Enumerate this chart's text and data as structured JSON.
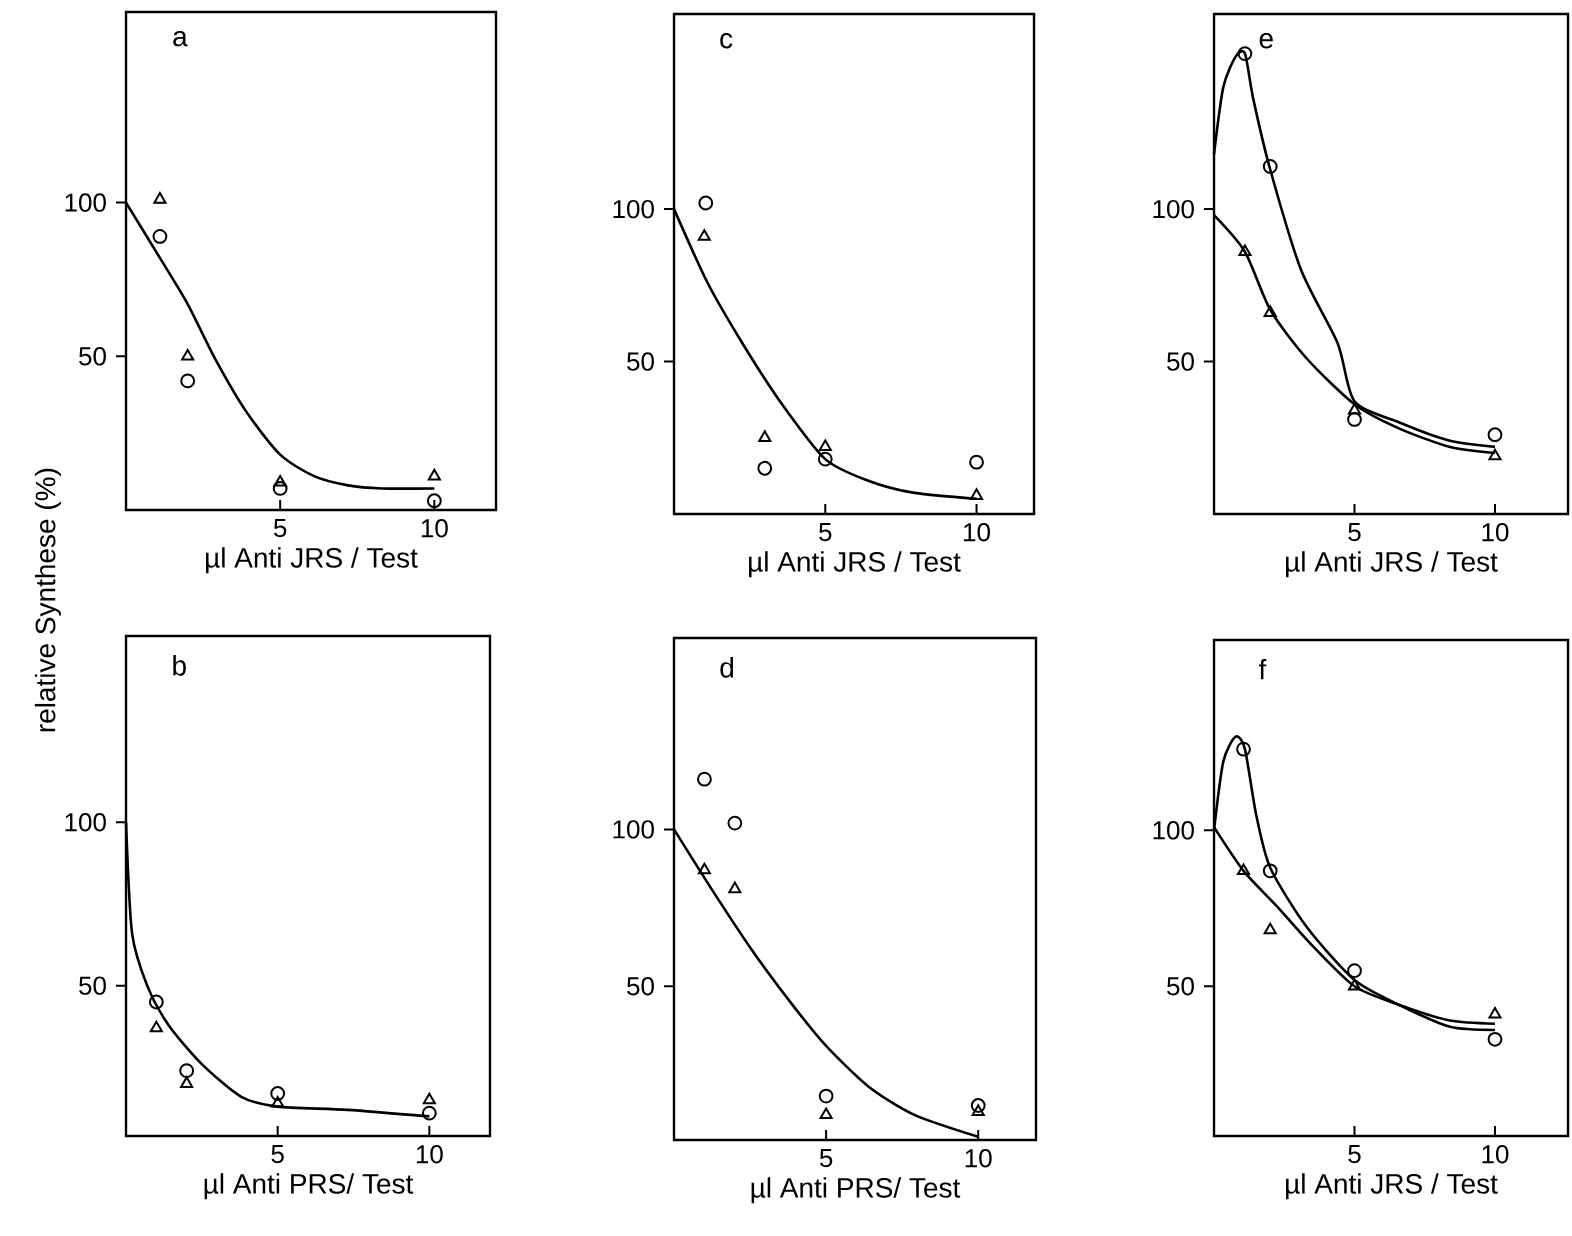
{
  "chart_data": [
    {
      "type": "scatter",
      "title": "a",
      "xlabel": "µl Anti JRS / Test",
      "ylabel": "relative Synthese (%)",
      "xlim": [
        0,
        12
      ],
      "xticks": [
        5,
        10
      ],
      "ylim": [
        0,
        162
      ],
      "yticks": [
        50,
        100
      ],
      "series": [
        {
          "type": "scatter",
          "marker": "circle",
          "color": "#000000",
          "x": [
            1.1,
            2,
            5,
            10
          ],
          "values": [
            89,
            42,
            7,
            3
          ]
        },
        {
          "type": "scatter",
          "marker": "triangle",
          "color": "#000000",
          "x": [
            1.1,
            2,
            5,
            10
          ],
          "values": [
            101,
            50,
            9,
            11
          ]
        },
        {
          "type": "line",
          "marker": "none",
          "color": "#000000",
          "x": [
            0,
            1.1,
            2,
            2.9,
            3.9,
            5,
            6.1,
            7.2,
            8.3,
            10
          ],
          "values": [
            100,
            82,
            67,
            49,
            32,
            18,
            11,
            8,
            7,
            7
          ]
        }
      ]
    },
    {
      "type": "scatter",
      "title": "c",
      "xlabel": "µl Anti JRS / Test",
      "xlim": [
        0,
        11.9
      ],
      "xticks": [
        5,
        10
      ],
      "ylim": [
        0,
        164
      ],
      "yticks": [
        50,
        100
      ],
      "series": [
        {
          "type": "scatter",
          "marker": "circle",
          "color": "#000000",
          "x": [
            1.05,
            3,
            5,
            10
          ],
          "values": [
            102,
            15,
            18,
            17
          ]
        },
        {
          "type": "scatter",
          "marker": "triangle",
          "color": "#000000",
          "x": [
            1,
            3,
            5,
            10
          ],
          "values": [
            91,
            25,
            22,
            6
          ]
        },
        {
          "type": "line",
          "marker": "none",
          "color": "#000000",
          "x": [
            0,
            1.1,
            2.2,
            3.5,
            5,
            6.4,
            7.9,
            10
          ],
          "values": [
            100,
            76,
            57,
            37,
            18,
            11,
            7,
            5
          ]
        }
      ]
    },
    {
      "type": "scatter",
      "title": "e",
      "xlabel": "µl Anti JRS / Test",
      "xlim": [
        0,
        12.6
      ],
      "xticks": [
        5,
        10
      ],
      "ylim": [
        0,
        164
      ],
      "yticks": [
        50,
        100
      ],
      "series": [
        {
          "type": "scatter",
          "marker": "circle",
          "color": "#000000",
          "x": [
            1.1,
            2,
            5,
            10
          ],
          "values": [
            151,
            114,
            31,
            26
          ]
        },
        {
          "type": "scatter",
          "marker": "triangle",
          "color": "#000000",
          "x": [
            1.1,
            2,
            5,
            10
          ],
          "values": [
            86,
            66,
            34,
            19
          ]
        },
        {
          "type": "line",
          "marker": "none",
          "color": "#000000",
          "x": [
            0,
            0.33,
            0.77,
            1.1,
            1.4,
            2,
            3.1,
            4.4,
            5,
            6.6,
            8.4,
            10
          ],
          "values": [
            118,
            140,
            150,
            151,
            136,
            113,
            80,
            56,
            37,
            30,
            24,
            22
          ]
        },
        {
          "type": "line",
          "marker": "none",
          "color": "#000000",
          "x": [
            0,
            1.1,
            2,
            3.3,
            5,
            6.6,
            8.4,
            10
          ],
          "values": [
            98,
            86,
            67,
            51,
            36,
            28,
            22,
            20
          ]
        }
      ]
    },
    {
      "type": "scatter",
      "title": "b",
      "xlabel": "µl Anti PRS/ Test",
      "xlim": [
        0,
        12
      ],
      "xticks": [
        5,
        10
      ],
      "ylim": [
        4,
        157
      ],
      "yticks": [
        50,
        100
      ],
      "series": [
        {
          "type": "scatter",
          "marker": "circle",
          "color": "#000000",
          "x": [
            1,
            2,
            5,
            10
          ],
          "values": [
            45,
            24,
            17,
            11
          ]
        },
        {
          "type": "scatter",
          "marker": "triangle",
          "color": "#000000",
          "x": [
            1,
            2,
            5,
            10
          ],
          "values": [
            37,
            20,
            14,
            15
          ]
        },
        {
          "type": "line",
          "marker": "none",
          "color": "#000000",
          "x": [
            0,
            0.2,
            0.7,
            1.4,
            2.5,
            3.8,
            5,
            7.3,
            10
          ],
          "values": [
            100,
            66,
            50,
            38,
            26,
            16,
            13,
            12,
            10
          ]
        }
      ]
    },
    {
      "type": "scatter",
      "title": "d",
      "xlabel": "µl Anti PRS/ Test",
      "xlim": [
        0,
        11.9
      ],
      "xticks": [
        5,
        10
      ],
      "ylim": [
        1,
        161
      ],
      "yticks": [
        50,
        100
      ],
      "series": [
        {
          "type": "scatter",
          "marker": "circle",
          "color": "#000000",
          "x": [
            1,
            2,
            5,
            10
          ],
          "values": [
            116,
            102,
            15,
            12
          ]
        },
        {
          "type": "scatter",
          "marker": "triangle",
          "color": "#000000",
          "x": [
            1,
            2,
            5,
            10
          ],
          "values": [
            87,
            81,
            9,
            10
          ]
        },
        {
          "type": "line",
          "marker": "none",
          "color": "#000000",
          "x": [
            0,
            1.3,
            2.6,
            3.9,
            5,
            6.4,
            7.9,
            10
          ],
          "values": [
            100,
            80,
            61,
            44,
            31,
            18,
            9,
            2
          ]
        }
      ]
    },
    {
      "type": "scatter",
      "title": "f",
      "xlabel": "µl Anti JRS / Test",
      "xlim": [
        0,
        12.6
      ],
      "xticks": [
        5,
        10
      ],
      "ylim": [
        2,
        161
      ],
      "yticks": [
        50,
        100
      ],
      "series": [
        {
          "type": "scatter",
          "marker": "circle",
          "color": "#000000",
          "x": [
            1.05,
            2,
            5,
            10
          ],
          "values": [
            126,
            87,
            55,
            33
          ]
        },
        {
          "type": "scatter",
          "marker": "triangle",
          "color": "#000000",
          "x": [
            1.05,
            2,
            5,
            10
          ],
          "values": [
            87,
            68,
            50,
            41
          ]
        },
        {
          "type": "line",
          "marker": "none",
          "color": "#000000",
          "x": [
            0,
            0.33,
            0.77,
            1.1,
            1.5,
            2,
            3.3,
            5,
            6.6,
            8.4,
            10
          ],
          "values": [
            100,
            122,
            130,
            126,
            105,
            88,
            69,
            52,
            44,
            37,
            36
          ]
        },
        {
          "type": "line",
          "marker": "none",
          "color": "#000000",
          "x": [
            0,
            1.05,
            2.2,
            3.5,
            5,
            6.6,
            8.4,
            10
          ],
          "values": [
            101,
            87,
            76,
            63,
            50,
            44,
            39,
            38
          ]
        }
      ]
    }
  ]
}
